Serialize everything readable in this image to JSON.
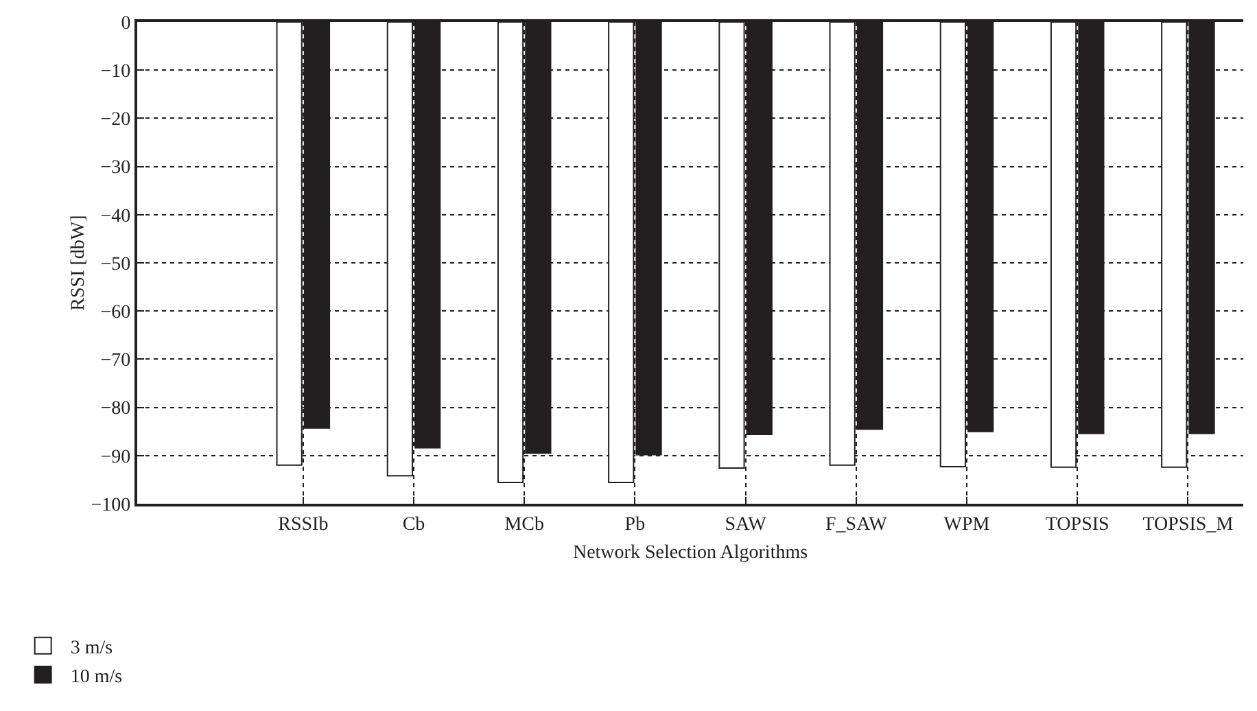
{
  "chart_data": {
    "type": "bar",
    "xlabel": "Network Selection Algorithms",
    "ylabel": "RSSI [dbW]",
    "categories": [
      "RSSIb",
      "Cb",
      "MCb",
      "Pb",
      "SAW",
      "F_SAW",
      "WPM",
      "TOPSIS",
      "TOPSIS_M"
    ],
    "series": [
      {
        "name": "3 m/s",
        "color": "#ffffff",
        "values": [
          -92,
          -94.2,
          -95.6,
          -95.6,
          -92.6,
          -92,
          -92.3,
          -92.4,
          -92.4
        ]
      },
      {
        "name": "10 m/s",
        "color": "#231f20",
        "values": [
          -84.3,
          -88.4,
          -89.5,
          -89.8,
          -85.6,
          -84.5,
          -85,
          -85.4,
          -85.4
        ]
      }
    ],
    "ylim": [
      -100,
      0
    ],
    "yticks": [
      0,
      -10,
      -20,
      -30,
      -40,
      -50,
      -60,
      -70,
      -80,
      -90,
      -100
    ],
    "grid": true,
    "legend": "bottom left"
  }
}
